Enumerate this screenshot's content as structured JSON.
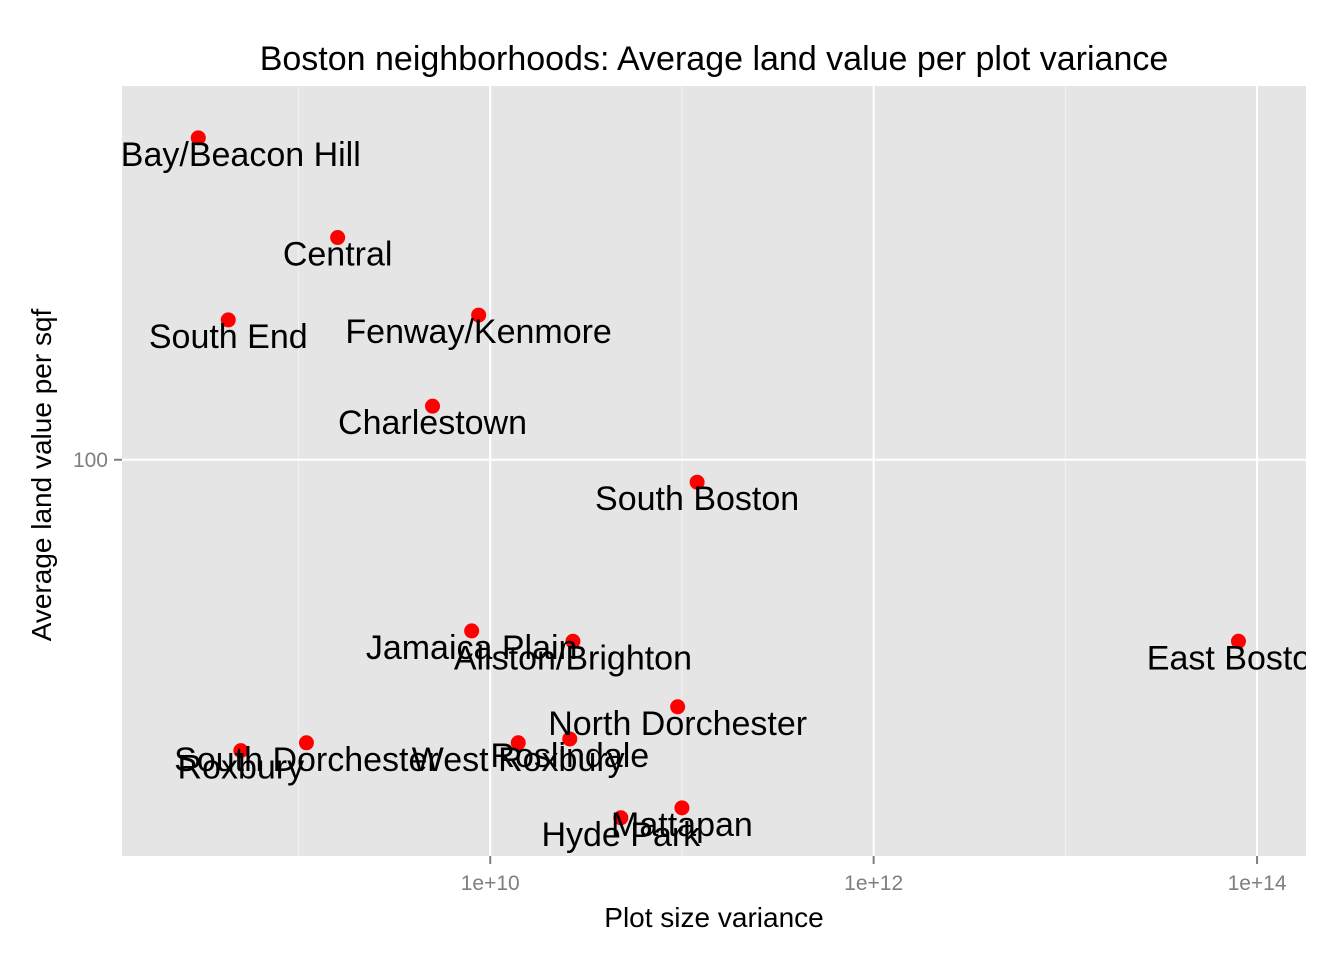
{
  "chart_data": {
    "type": "scatter",
    "title": "Boston neighborhoods: Average land value per plot variance",
    "xlabel": "Plot size variance",
    "ylabel": "Average land value per sqf",
    "x_scale": "log10",
    "y_scale": "log10",
    "xlim": [
      120000000,
      180000000000000
    ],
    "ylim": [
      23,
      400
    ],
    "x_ticks": [
      {
        "value": 10000000000,
        "label": "1e+10"
      },
      {
        "value": 1000000000000,
        "label": "1e+12"
      },
      {
        "value": 100000000000000,
        "label": "1e+14"
      }
    ],
    "y_ticks": [
      {
        "value": 100,
        "label": "100"
      }
    ],
    "grid": true,
    "point_color": "#ff0000",
    "panel_background": "#e5e5e5",
    "gridline_color": "#ffffff",
    "points": [
      {
        "label": "Back Bay/Beacon Hill",
        "x": 300000000,
        "y": 330
      },
      {
        "label": "Central",
        "x": 1600000000,
        "y": 228
      },
      {
        "label": "South End",
        "x": 430000000,
        "y": 168
      },
      {
        "label": "Fenway/Kenmore",
        "x": 8700000000,
        "y": 171
      },
      {
        "label": "Charlestown",
        "x": 5000000000,
        "y": 122
      },
      {
        "label": "South Boston",
        "x": 120000000000,
        "y": 92
      },
      {
        "label": "Jamaica Plain",
        "x": 8000000000,
        "y": 53
      },
      {
        "label": "Allston/Brighton",
        "x": 27000000000,
        "y": 51
      },
      {
        "label": "East Boston",
        "x": 80000000000000,
        "y": 51
      },
      {
        "label": "North Dorchester",
        "x": 95000000000,
        "y": 40
      },
      {
        "label": "South Dorchester",
        "x": 1100000000,
        "y": 35
      },
      {
        "label": "Roxbury",
        "x": 500000000,
        "y": 34
      },
      {
        "label": "Roslindale",
        "x": 26000000000,
        "y": 35.5
      },
      {
        "label": "West Roxbury",
        "x": 14000000000,
        "y": 35
      },
      {
        "label": "Mattapan",
        "x": 100000000000,
        "y": 27.5
      },
      {
        "label": "Hyde Park",
        "x": 48000000000,
        "y": 26.5
      }
    ]
  }
}
